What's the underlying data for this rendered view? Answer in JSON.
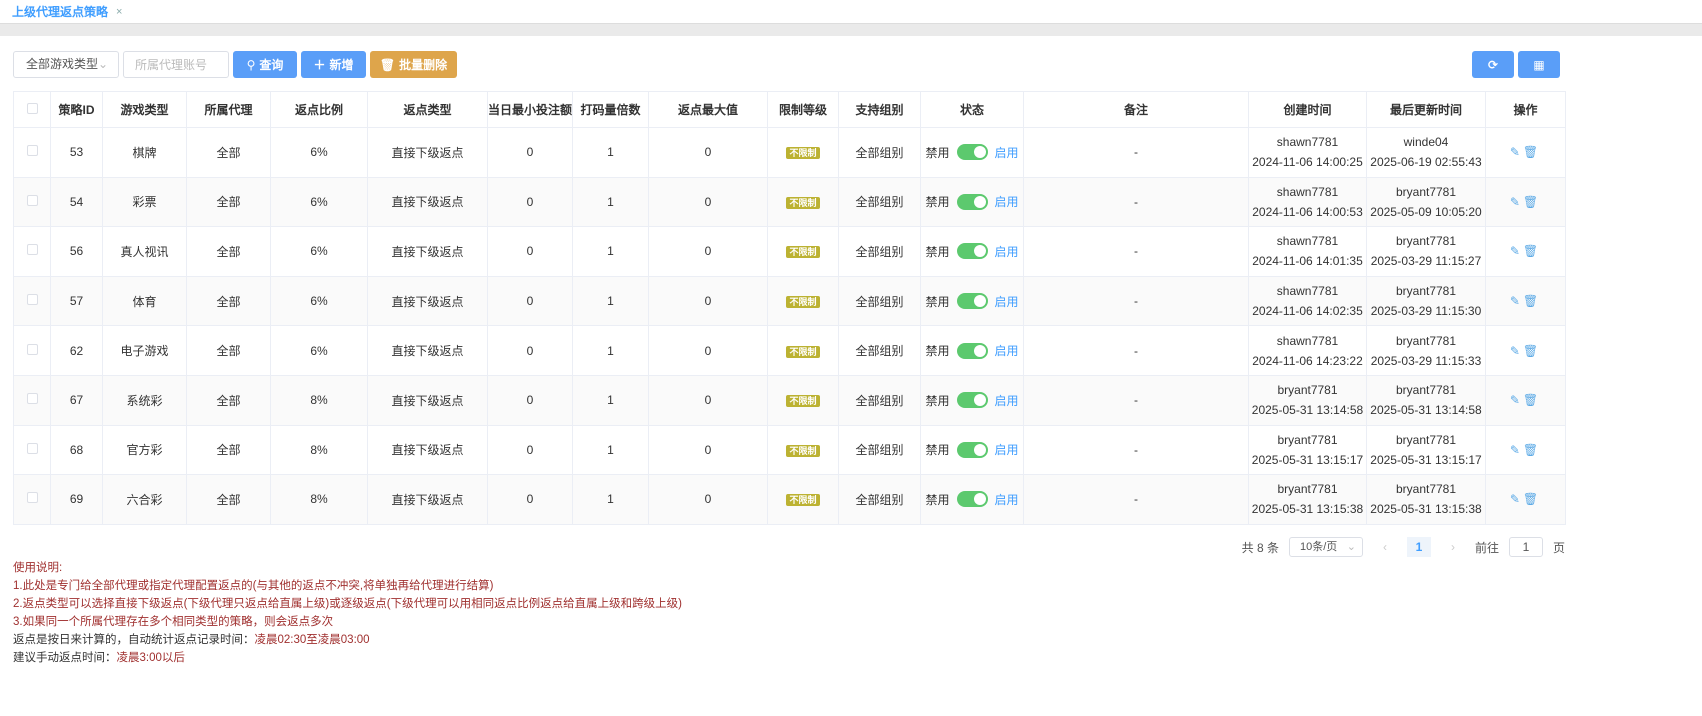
{
  "tab": {
    "label": "上级代理返点策略",
    "close": "×"
  },
  "toolbar": {
    "game_type_select": "全部游戏类型",
    "agent_placeholder": "所属代理账号",
    "query": "查询",
    "add": "新增",
    "batch_delete": "批量删除"
  },
  "columns": [
    "策略ID",
    "游戏类型",
    "所属代理",
    "返点比例",
    "返点类型",
    "当日最小投注额",
    "打码量倍数",
    "返点最大值",
    "限制等级",
    "支持组别",
    "状态",
    "备注",
    "创建时间",
    "最后更新时间",
    "操作"
  ],
  "status_labels": {
    "off": "禁用",
    "on": "启用"
  },
  "rows": [
    {
      "id": "53",
      "game": "棋牌",
      "agent": "全部",
      "ratio": "6%",
      "type": "直接下级返点",
      "min": "0",
      "mult": "1",
      "max": "0",
      "level": "不限制",
      "group": "全部组别",
      "enabled": true,
      "remark": "-",
      "creator": "shawn7781",
      "created": "2024-11-06 14:00:25",
      "updater": "winde04",
      "updated": "2025-06-19 02:55:43"
    },
    {
      "id": "54",
      "game": "彩票",
      "agent": "全部",
      "ratio": "6%",
      "type": "直接下级返点",
      "min": "0",
      "mult": "1",
      "max": "0",
      "level": "不限制",
      "group": "全部组别",
      "enabled": true,
      "remark": "-",
      "creator": "shawn7781",
      "created": "2024-11-06 14:00:53",
      "updater": "bryant7781",
      "updated": "2025-05-09 10:05:20"
    },
    {
      "id": "56",
      "game": "真人视讯",
      "agent": "全部",
      "ratio": "6%",
      "type": "直接下级返点",
      "min": "0",
      "mult": "1",
      "max": "0",
      "level": "不限制",
      "group": "全部组别",
      "enabled": true,
      "remark": "-",
      "creator": "shawn7781",
      "created": "2024-11-06 14:01:35",
      "updater": "bryant7781",
      "updated": "2025-03-29 11:15:27"
    },
    {
      "id": "57",
      "game": "体育",
      "agent": "全部",
      "ratio": "6%",
      "type": "直接下级返点",
      "min": "0",
      "mult": "1",
      "max": "0",
      "level": "不限制",
      "group": "全部组别",
      "enabled": true,
      "remark": "-",
      "creator": "shawn7781",
      "created": "2024-11-06 14:02:35",
      "updater": "bryant7781",
      "updated": "2025-03-29 11:15:30"
    },
    {
      "id": "62",
      "game": "电子游戏",
      "agent": "全部",
      "ratio": "6%",
      "type": "直接下级返点",
      "min": "0",
      "mult": "1",
      "max": "0",
      "level": "不限制",
      "group": "全部组别",
      "enabled": true,
      "remark": "-",
      "creator": "shawn7781",
      "created": "2024-11-06 14:23:22",
      "updater": "bryant7781",
      "updated": "2025-03-29 11:15:33"
    },
    {
      "id": "67",
      "game": "系统彩",
      "agent": "全部",
      "ratio": "8%",
      "type": "直接下级返点",
      "min": "0",
      "mult": "1",
      "max": "0",
      "level": "不限制",
      "group": "全部组别",
      "enabled": true,
      "remark": "-",
      "creator": "bryant7781",
      "created": "2025-05-31 13:14:58",
      "updater": "bryant7781",
      "updated": "2025-05-31 13:14:58"
    },
    {
      "id": "68",
      "game": "官方彩",
      "agent": "全部",
      "ratio": "8%",
      "type": "直接下级返点",
      "min": "0",
      "mult": "1",
      "max": "0",
      "level": "不限制",
      "group": "全部组别",
      "enabled": true,
      "remark": "-",
      "creator": "bryant7781",
      "created": "2025-05-31 13:15:17",
      "updater": "bryant7781",
      "updated": "2025-05-31 13:15:17"
    },
    {
      "id": "69",
      "game": "六合彩",
      "agent": "全部",
      "ratio": "8%",
      "type": "直接下级返点",
      "min": "0",
      "mult": "1",
      "max": "0",
      "level": "不限制",
      "group": "全部组别",
      "enabled": true,
      "remark": "-",
      "creator": "bryant7781",
      "created": "2025-05-31 13:15:38",
      "updater": "bryant7781",
      "updated": "2025-05-31 13:15:38"
    }
  ],
  "pagination": {
    "total": "共 8 条",
    "page_size": "10条/页",
    "current": "1",
    "goto_label": "前往",
    "goto_value": "1",
    "page_suffix": "页"
  },
  "notes": {
    "title": "使用说明:",
    "line1": "1.此处是专门给全部代理或指定代理配置返点的(与其他的返点不冲突,将单独再给代理进行结算)",
    "line2": "2.返点类型可以选择直接下级返点(下级代理只返点给直属上级)或逐级返点(下级代理可以用相同返点比例返点给直属上级和跨级上级)",
    "line3": "3.如果同一个所属代理存在多个相同类型的策略，则会返点多次",
    "line4_label": "返点是按日来计算的，自动统计返点记录时间：",
    "line4_value": "凌晨02:30至凌晨03:00",
    "line5_label": "建议手动返点时间：",
    "line5_value": "凌晨3:00以后"
  },
  "colors": {
    "primary": "#5a9ef8",
    "warning": "#dea54b",
    "badge": "#bcb232",
    "switch_on": "#5cc96e",
    "note": "#a0302f"
  }
}
